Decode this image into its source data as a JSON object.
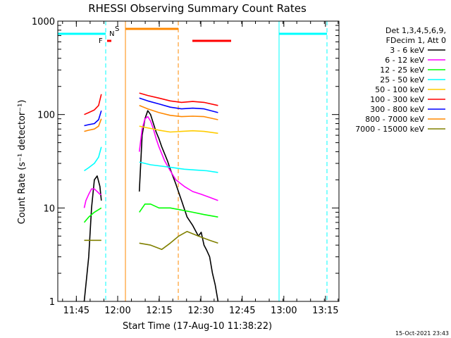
{
  "chart_data": {
    "type": "line",
    "title": "RHESSI Observing Summary Count Rates",
    "xlabel": "Start Time (17-Aug-10 11:38:22)",
    "ylabel": "Count Rate (s⁻¹ detector⁻¹)",
    "yscale": "log",
    "ylim": [
      1,
      1000
    ],
    "xlim": [
      0,
      100
    ],
    "x_ticks": [
      {
        "label": "11:45",
        "x": 6.6
      },
      {
        "label": "12:00",
        "x": 21.3
      },
      {
        "label": "12:15",
        "x": 36.1
      },
      {
        "label": "12:30",
        "x": 50.9
      },
      {
        "label": "12:45",
        "x": 65.6
      },
      {
        "label": "13:00",
        "x": 80.4
      },
      {
        "label": "13:15",
        "x": 95.2
      }
    ],
    "y_ticks": [
      {
        "label": "1",
        "value": 1
      },
      {
        "label": "10",
        "value": 10
      },
      {
        "label": "100",
        "value": 100
      },
      {
        "label": "1000",
        "value": 1000
      }
    ],
    "legend_header": [
      "Det 1,3,4,5,6,9,",
      "FDecim 1, Att 0"
    ],
    "legend_position": "right",
    "series": [
      {
        "name": "3 - 6 keV",
        "color": "#000000",
        "x": [
          9.4,
          10.0,
          11.0,
          12.0,
          13.0,
          14.0,
          15.0,
          15.5,
          null,
          29.0,
          30.0,
          31.0,
          32.0,
          33.0,
          34.0,
          35.0,
          36.0,
          37.0,
          38.0,
          39.0,
          40.0,
          42.0,
          44.0,
          46.0,
          48.0,
          50.0,
          51.0,
          52.0,
          53.0,
          54.0,
          55.0,
          56.0,
          57.0
        ],
        "y": [
          1,
          1.5,
          3,
          10,
          20,
          22,
          17,
          12,
          null,
          15,
          60,
          90,
          110,
          100,
          80,
          65,
          55,
          45,
          38,
          32,
          26,
          18,
          12,
          8,
          6.5,
          5,
          5.5,
          4,
          3.5,
          3,
          2,
          1.5,
          1
        ]
      },
      {
        "name": "6 - 12 keV",
        "color": "#ff00ff",
        "x": [
          9.4,
          10.0,
          11.0,
          12.0,
          13.0,
          14.0,
          15.0,
          15.5,
          null,
          29.0,
          30.0,
          31.0,
          32.0,
          33.0,
          34.0,
          35.0,
          36.0,
          37.0,
          38.0,
          40.0,
          42.0,
          45.0,
          48.0,
          51.0,
          54.0,
          57.0
        ],
        "y": [
          10,
          12,
          14,
          16,
          16,
          15,
          14,
          14,
          null,
          40,
          70,
          90,
          95,
          85,
          70,
          55,
          45,
          38,
          32,
          25,
          20,
          17,
          15,
          14,
          13,
          12
        ]
      },
      {
        "name": "12 - 25 keV",
        "color": "#00ff00",
        "x": [
          9.4,
          11.0,
          13.0,
          15.5,
          null,
          29.0,
          31.0,
          33.0,
          36.0,
          40.0,
          44.0,
          48.0,
          52.0,
          57.0
        ],
        "y": [
          7,
          8,
          9,
          10,
          null,
          9,
          11,
          11,
          10,
          10,
          9.5,
          9,
          8.5,
          8
        ]
      },
      {
        "name": "25 - 50 keV",
        "color": "#00ffff",
        "x": [
          9.4,
          11.0,
          13.0,
          14.5,
          15.5,
          null,
          29.0,
          33.0,
          37.0,
          41.0,
          45.0,
          49.0,
          53.0,
          57.0
        ],
        "y": [
          25,
          27,
          30,
          35,
          45,
          null,
          31,
          29,
          28,
          27,
          26,
          25.5,
          25,
          24
        ]
      },
      {
        "name": "50 - 100 keV",
        "color": "#ffcc00",
        "x": [
          29.0,
          32.0,
          36.0,
          40.0,
          44.0,
          48.0,
          52.0,
          57.0
        ],
        "y": [
          75,
          72,
          68,
          65,
          66,
          67,
          66,
          63
        ]
      },
      {
        "name": "100 - 300 keV",
        "color": "#ff0000",
        "x": [
          9.4,
          11.0,
          13.0,
          14.5,
          15.5,
          null,
          29.0,
          32.0,
          36.0,
          40.0,
          44.0,
          48.0,
          52.0,
          57.0
        ],
        "y": [
          100,
          105,
          112,
          125,
          165,
          null,
          170,
          160,
          150,
          140,
          135,
          138,
          135,
          125
        ]
      },
      {
        "name": "300 - 800 keV",
        "color": "#0000ff",
        "x": [
          9.4,
          11.0,
          13.0,
          14.5,
          15.5,
          null,
          29.0,
          32.0,
          36.0,
          40.0,
          44.0,
          48.0,
          52.0,
          57.0
        ],
        "y": [
          76,
          78,
          80,
          88,
          110,
          null,
          150,
          140,
          130,
          120,
          115,
          117,
          115,
          105
        ]
      },
      {
        "name": "800 - 7000 keV",
        "color": "#ff8800",
        "x": [
          9.4,
          11.0,
          13.0,
          14.5,
          15.5,
          null,
          29.0,
          32.0,
          36.0,
          40.0,
          44.0,
          48.0,
          52.0,
          57.0
        ],
        "y": [
          66,
          68,
          70,
          75,
          90,
          null,
          125,
          115,
          105,
          98,
          95,
          96,
          95,
          88
        ]
      },
      {
        "name": "7000 - 15000 keV",
        "color": "#808000",
        "x": [
          9.4,
          11.0,
          13.0,
          15.5,
          null,
          29.0,
          33.0,
          37.0,
          40.0,
          43.0,
          46.0,
          50.0,
          54.0,
          57.0
        ],
        "y": [
          4.5,
          4.5,
          4.5,
          4.5,
          null,
          4.2,
          4.0,
          3.6,
          4.2,
          5.0,
          5.6,
          5.0,
          4.5,
          4.2
        ]
      }
    ],
    "annotations": [
      {
        "label": "F",
        "color": "#ff0000"
      },
      {
        "label": "N",
        "color": "#00ffff"
      },
      {
        "label": "S",
        "color": "#ff8800"
      }
    ],
    "timestamp": "15-Oct-2021 23:43"
  }
}
